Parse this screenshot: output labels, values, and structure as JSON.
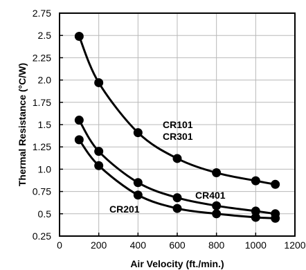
{
  "chart_data": {
    "type": "line",
    "title": "",
    "xlabel": "Air Velocity (ft./min.)",
    "ylabel": "Thermal Resistance (°C/W)",
    "xlim": [
      0,
      1200
    ],
    "ylim": [
      0.25,
      2.75
    ],
    "grid": true,
    "x_ticks": [
      "0",
      "200",
      "400",
      "600",
      "800",
      "1000",
      "1200"
    ],
    "y_ticks": [
      "0.25",
      "0.5",
      "0.75",
      "1.0",
      "1.25",
      "1.5",
      "1.75",
      "2.0",
      "2.25",
      "2.5",
      "2.75"
    ],
    "line_color": "#000000",
    "series": [
      {
        "name": "CR101 CR301",
        "label_lines": [
          "CR101",
          "CR301"
        ],
        "x": [
          100,
          200,
          400,
          600,
          800,
          1000,
          1100
        ],
        "y": [
          2.49,
          1.97,
          1.41,
          1.12,
          0.96,
          0.87,
          0.83
        ]
      },
      {
        "name": "CR401",
        "label_lines": [
          "CR401"
        ],
        "x": [
          100,
          200,
          400,
          600,
          800,
          1000,
          1100
        ],
        "y": [
          1.55,
          1.2,
          0.85,
          0.68,
          0.59,
          0.53,
          0.5
        ]
      },
      {
        "name": "CR201",
        "label_lines": [
          "CR201"
        ],
        "x": [
          100,
          200,
          400,
          600,
          800,
          1000,
          1100
        ],
        "y": [
          1.33,
          1.04,
          0.71,
          0.56,
          0.5,
          0.46,
          0.45
        ]
      }
    ]
  }
}
